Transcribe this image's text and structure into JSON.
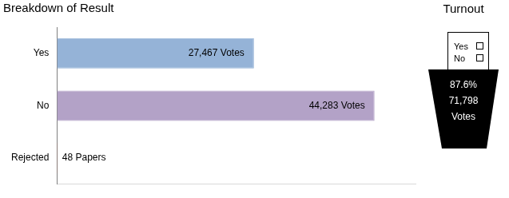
{
  "chart_data": {
    "type": "bar",
    "title": "Breakdown of Result",
    "orientation": "horizontal",
    "categories": [
      "Yes",
      "No",
      "Rejected"
    ],
    "values": [
      27467,
      44283,
      48
    ],
    "value_labels": [
      "27,467 Votes",
      "44,283 Votes",
      "48 Papers"
    ],
    "colors": [
      "#95b3d7",
      "#b3a2c7",
      "#c0504d"
    ],
    "xlim": [
      0,
      50000
    ],
    "grid": false,
    "data_labels": true,
    "tick_labels": "y"
  },
  "turnout": {
    "title": "Turnout",
    "ballot": [
      "Yes",
      "No"
    ],
    "lines": [
      "87.6%",
      "71,798",
      "Votes"
    ]
  }
}
